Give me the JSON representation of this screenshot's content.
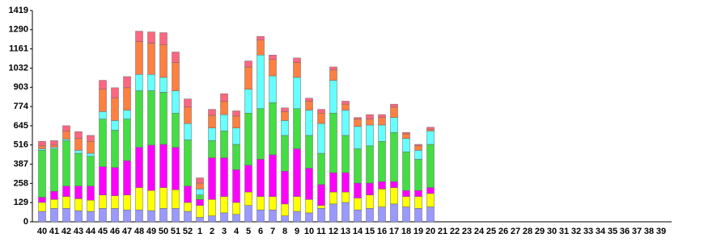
{
  "chart_data": {
    "type": "stacked_bar",
    "categories": [
      "40",
      "41",
      "42",
      "43",
      "44",
      "45",
      "46",
      "47",
      "48",
      "49",
      "50",
      "51",
      "52",
      "1",
      "2",
      "3",
      "4",
      "5",
      "6",
      "7",
      "8",
      "9",
      "10",
      "11",
      "12",
      "13",
      "14",
      "15",
      "16",
      "17",
      "18",
      "19",
      "20",
      "21",
      "22",
      "23",
      "24",
      "25",
      "26",
      "27",
      "28",
      "29",
      "30",
      "31",
      "32",
      "33",
      "34",
      "35",
      "36",
      "37",
      "38",
      "39"
    ],
    "series": [
      {
        "color": "#9999ff",
        "values": [
          70,
          90,
          90,
          75,
          70,
          90,
          90,
          80,
          80,
          75,
          90,
          90,
          70,
          30,
          40,
          60,
          50,
          110,
          80,
          80,
          40,
          70,
          60,
          90,
          120,
          130,
          80,
          90,
          100,
          120,
          100,
          90,
          100,
          null,
          null,
          null,
          null,
          null,
          null,
          null,
          null,
          null,
          null,
          null,
          null,
          null,
          null,
          null,
          null,
          null,
          null,
          null
        ]
      },
      {
        "color": "#ffff00",
        "values": [
          60,
          60,
          80,
          80,
          75,
          90,
          85,
          100,
          150,
          135,
          140,
          125,
          60,
          80,
          110,
          110,
          80,
          90,
          90,
          90,
          80,
          100,
          90,
          20,
          80,
          70,
          80,
          90,
          120,
          110,
          70,
          80,
          90,
          null,
          null,
          null,
          null,
          null,
          null,
          null,
          null,
          null,
          null,
          null,
          null,
          null,
          null,
          null,
          null,
          null,
          null,
          null
        ]
      },
      {
        "color": "#ff00ff",
        "values": [
          35,
          55,
          70,
          85,
          95,
          190,
          190,
          230,
          270,
          305,
          290,
          285,
          110,
          40,
          280,
          260,
          220,
          180,
          250,
          280,
          220,
          320,
          210,
          140,
          130,
          130,
          100,
          80,
          50,
          40,
          40,
          40,
          40,
          null,
          null,
          null,
          null,
          null,
          null,
          null,
          null,
          null,
          null,
          null,
          null,
          null,
          null,
          null,
          null,
          null,
          null,
          null
        ]
      },
      {
        "color": "#44dd44",
        "values": [
          315,
          285,
          305,
          220,
          200,
          320,
          250,
          280,
          380,
          365,
          350,
          230,
          310,
          30,
          115,
          180,
          170,
          350,
          340,
          350,
          240,
          270,
          220,
          210,
          400,
          250,
          230,
          250,
          270,
          330,
          260,
          210,
          290,
          null,
          null,
          null,
          null,
          null,
          null,
          null,
          null,
          null,
          null,
          null,
          null,
          null,
          null,
          null,
          null,
          null,
          null,
          null
        ]
      },
      {
        "color": "#66ffff",
        "values": [
          10,
          10,
          10,
          20,
          20,
          50,
          65,
          60,
          110,
          110,
          100,
          150,
          110,
          40,
          85,
          110,
          110,
          160,
          360,
          180,
          100,
          210,
          170,
          200,
          220,
          170,
          150,
          140,
          110,
          100,
          90,
          60,
          90,
          null,
          null,
          null,
          null,
          null,
          null,
          null,
          null,
          null,
          null,
          null,
          null,
          null,
          null,
          null,
          null,
          null,
          null,
          null
        ]
      },
      {
        "color": "#ff8040",
        "values": [
          20,
          15,
          55,
          80,
          80,
          150,
          150,
          150,
          220,
          210,
          220,
          190,
          110,
          40,
          85,
          90,
          80,
          150,
          100,
          110,
          60,
          100,
          60,
          70,
          70,
          40,
          50,
          40,
          50,
          70,
          30,
          30,
          10,
          null,
          null,
          null,
          null,
          null,
          null,
          null,
          null,
          null,
          null,
          null,
          null,
          null,
          null,
          null,
          null,
          null,
          null,
          null
        ]
      },
      {
        "color": "#ff6680",
        "values": [
          30,
          30,
          35,
          45,
          40,
          60,
          70,
          75,
          70,
          75,
          80,
          70,
          55,
          35,
          40,
          50,
          35,
          40,
          25,
          30,
          25,
          30,
          20,
          25,
          20,
          20,
          10,
          30,
          20,
          20,
          10,
          10,
          15,
          null,
          null,
          null,
          null,
          null,
          null,
          null,
          null,
          null,
          null,
          null,
          null,
          null,
          null,
          null,
          null,
          null,
          null,
          null
        ]
      }
    ],
    "ylim": [
      0,
      1419
    ],
    "yticks": [
      0,
      129,
      258,
      387,
      516,
      645,
      774,
      903,
      1032,
      1161,
      1290,
      1419
    ]
  }
}
